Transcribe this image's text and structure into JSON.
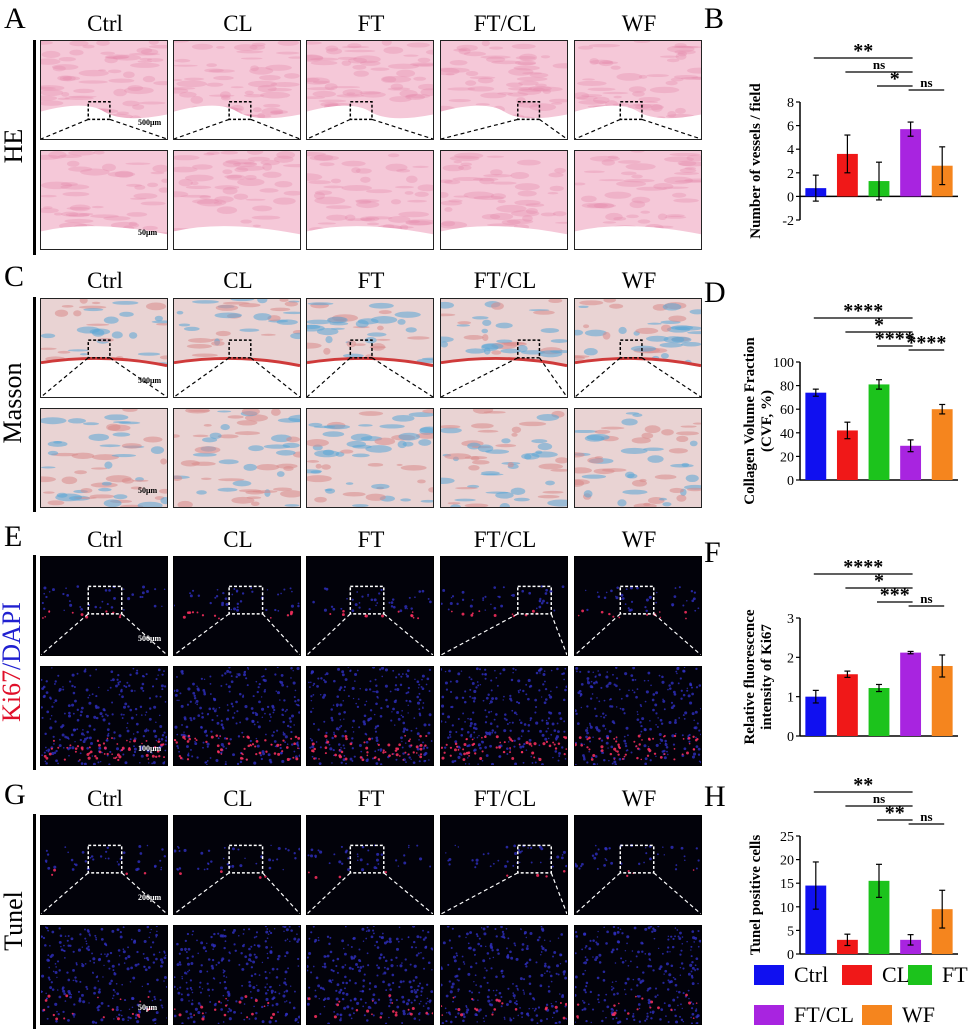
{
  "groups": [
    "Ctrl",
    "CL",
    "FT",
    "FT/CL",
    "WF"
  ],
  "colors": {
    "Ctrl": "#1010f0",
    "CL": "#f01818",
    "FT": "#1cc31c",
    "FT/CL": "#a824e0",
    "WF": "#f5851e",
    "he_light": "#f5c8d8",
    "he_dark": "#e58aab",
    "masson_blue": "#5aa6d6",
    "masson_red": "#d98a8a",
    "fluor_blue": "#1a1a7a",
    "fluor_red": "#ff3060"
  },
  "panels": {
    "A": {
      "letter": "A",
      "row_label": "HE",
      "scale_top": "500μm",
      "scale_bottom": "50μm"
    },
    "C": {
      "letter": "C",
      "row_label": "Masson",
      "scale_top": "500μm",
      "scale_bottom": "50μm"
    },
    "E": {
      "letter": "E",
      "row_label_red": "Ki67",
      "row_label_blue": "/DAPI",
      "scale_top": "500μm",
      "scale_bottom": "100μm"
    },
    "G": {
      "letter": "G",
      "row_label": "Tunel",
      "scale_top": "200μm",
      "scale_bottom": "50μm"
    }
  },
  "chart_data": [
    {
      "letter": "B",
      "type": "bar",
      "categories": [
        "Ctrl",
        "CL",
        "FT",
        "FT/CL",
        "WF"
      ],
      "values": [
        0.7,
        3.6,
        1.3,
        5.7,
        2.6
      ],
      "errors": [
        1.1,
        1.6,
        1.6,
        0.6,
        1.6
      ],
      "ylabel": "Number of vessels / field",
      "ylim": [
        -2,
        8
      ],
      "yticks": [
        "-2",
        "0",
        "2",
        "4",
        "6",
        "8"
      ],
      "ytick_values": [
        -2,
        0,
        2,
        4,
        6,
        8
      ],
      "significance": [
        {
          "from": 0,
          "to": 3,
          "label": "**"
        },
        {
          "from": 1,
          "to": 3,
          "label": "ns"
        },
        {
          "from": 2,
          "to": 3,
          "label": "*"
        },
        {
          "from": 3,
          "to": 4,
          "label": "ns"
        }
      ]
    },
    {
      "letter": "D",
      "type": "bar",
      "categories": [
        "Ctrl",
        "CL",
        "FT",
        "FT/CL",
        "WF"
      ],
      "values": [
        74,
        42,
        81,
        29,
        60
      ],
      "errors": [
        3,
        7,
        4,
        5,
        4
      ],
      "ylabel": "Collagen Volume Fraction (CVF, %)",
      "ylabel_lines": [
        "Collagen Volume Fraction",
        "(CVF, %)"
      ],
      "ylim": [
        0,
        100
      ],
      "yticks": [
        "0",
        "20",
        "40",
        "60",
        "80",
        "100"
      ],
      "ytick_values": [
        0,
        20,
        40,
        60,
        80,
        100
      ],
      "significance": [
        {
          "from": 0,
          "to": 3,
          "label": "****"
        },
        {
          "from": 1,
          "to": 3,
          "label": "*"
        },
        {
          "from": 2,
          "to": 3,
          "label": "****"
        },
        {
          "from": 3,
          "to": 4,
          "label": "****"
        }
      ]
    },
    {
      "letter": "F",
      "type": "bar",
      "categories": [
        "Ctrl",
        "CL",
        "FT",
        "FT/CL",
        "WF"
      ],
      "values": [
        1.0,
        1.57,
        1.22,
        2.12,
        1.78
      ],
      "errors": [
        0.16,
        0.08,
        0.09,
        0.03,
        0.28
      ],
      "ylabel": "Relative fluorescence intensity of Ki67",
      "ylabel_lines": [
        "Relative fluorescence",
        "intensity of Ki67"
      ],
      "ylim": [
        0,
        3
      ],
      "yticks": [
        "0",
        "1",
        "2",
        "3"
      ],
      "ytick_values": [
        0,
        1,
        2,
        3
      ],
      "significance": [
        {
          "from": 0,
          "to": 3,
          "label": "****"
        },
        {
          "from": 1,
          "to": 3,
          "label": "*"
        },
        {
          "from": 2,
          "to": 3,
          "label": "***"
        },
        {
          "from": 3,
          "to": 4,
          "label": "ns"
        }
      ]
    },
    {
      "letter": "H",
      "type": "bar",
      "categories": [
        "Ctrl",
        "CL",
        "FT",
        "FT/CL",
        "WF"
      ],
      "values": [
        14.5,
        3.0,
        15.5,
        3.0,
        9.5
      ],
      "errors": [
        5,
        1.2,
        3.5,
        1.1,
        4
      ],
      "ylabel": "Tunel positive cells",
      "ylim": [
        0,
        25
      ],
      "yticks": [
        "0",
        "5",
        "10",
        "15",
        "20",
        "25"
      ],
      "ytick_values": [
        0,
        5,
        10,
        15,
        20,
        25
      ],
      "significance": [
        {
          "from": 0,
          "to": 3,
          "label": "**"
        },
        {
          "from": 1,
          "to": 3,
          "label": "ns"
        },
        {
          "from": 2,
          "to": 3,
          "label": "**"
        },
        {
          "from": 3,
          "to": 4,
          "label": "ns"
        }
      ]
    }
  ],
  "legend": [
    {
      "label": "Ctrl",
      "color": "#1010f0"
    },
    {
      "label": "CL",
      "color": "#f01818"
    },
    {
      "label": "FT",
      "color": "#1cc31c"
    },
    {
      "label": "FT/CL",
      "color": "#a824e0"
    },
    {
      "label": "WF",
      "color": "#f5851e"
    }
  ]
}
